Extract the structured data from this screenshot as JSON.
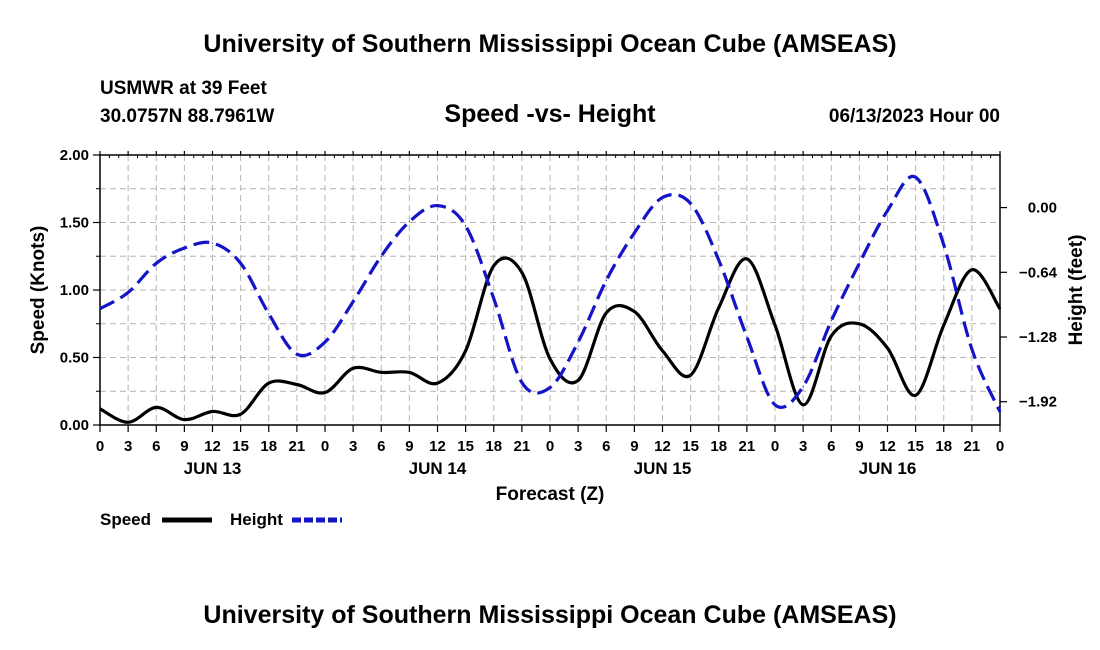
{
  "header": {
    "title": "University of Southern Mississippi Ocean Cube (AMSEAS)",
    "station": "USMWR at 39 Feet",
    "coords": "30.0757N  88.7961W",
    "plot_title": "Speed -vs- Height",
    "datetime": "06/13/2023 Hour 00"
  },
  "footer": {
    "title": "University of Southern Mississippi Ocean Cube (AMSEAS)"
  },
  "legend": {
    "speed_label": "Speed",
    "height_label": "Height"
  },
  "chart_data": {
    "type": "line",
    "title": "Speed -vs- Height",
    "xlabel": "Forecast (Z)",
    "ylabel": "Speed (Knots)",
    "y2label": "Height (feet)",
    "xlim": [
      0,
      96
    ],
    "ylim": [
      0,
      2.0
    ],
    "y2lim": [
      -2.15,
      0.52
    ],
    "grid": true,
    "legend_position": "bottom-left",
    "x_ticks": [
      0,
      3,
      6,
      9,
      12,
      15,
      18,
      21,
      24,
      27,
      30,
      33,
      36,
      39,
      42,
      45,
      48,
      51,
      54,
      57,
      60,
      63,
      66,
      69,
      72,
      75,
      78,
      81,
      84,
      87,
      90,
      93,
      96
    ],
    "x_tick_labels": [
      "0",
      "3",
      "6",
      "9",
      "12",
      "15",
      "18",
      "21",
      "0",
      "3",
      "6",
      "9",
      "12",
      "15",
      "18",
      "21",
      "0",
      "3",
      "6",
      "9",
      "12",
      "15",
      "18",
      "21",
      "0",
      "3",
      "6",
      "9",
      "12",
      "15",
      "18",
      "21",
      "0"
    ],
    "date_labels": [
      {
        "x": 12,
        "label": "JUN 13"
      },
      {
        "x": 36,
        "label": "JUN 14"
      },
      {
        "x": 60,
        "label": "JUN 15"
      },
      {
        "x": 84,
        "label": "JUN 16"
      }
    ],
    "y_ticks": [
      0.0,
      0.5,
      1.0,
      1.5,
      2.0
    ],
    "y_tick_labels": [
      "0.00",
      "0.50",
      "1.00",
      "1.50",
      "2.00"
    ],
    "y2_ticks": [
      0.0,
      -0.64,
      -1.28,
      -1.92
    ],
    "y2_tick_labels": [
      "0.00",
      "−0.64",
      "−1.28",
      "−1.92"
    ],
    "series": [
      {
        "name": "Speed",
        "axis": "left",
        "color": "#000000",
        "dash": "solid",
        "x": [
          0,
          3,
          6,
          9,
          12,
          15,
          18,
          21,
          24,
          27,
          30,
          33,
          36,
          39,
          42,
          45,
          48,
          51,
          54,
          57,
          60,
          63,
          66,
          69,
          72,
          75,
          78,
          81,
          84,
          87,
          90,
          93,
          96
        ],
        "values": [
          0.12,
          0.02,
          0.13,
          0.04,
          0.1,
          0.08,
          0.31,
          0.3,
          0.24,
          0.42,
          0.39,
          0.39,
          0.31,
          0.55,
          1.18,
          1.13,
          0.49,
          0.33,
          0.83,
          0.84,
          0.55,
          0.37,
          0.87,
          1.23,
          0.74,
          0.15,
          0.66,
          0.75,
          0.57,
          0.22,
          0.74,
          1.15,
          0.86
        ]
      },
      {
        "name": "Height",
        "axis": "right",
        "color": "#1414c8",
        "dash": "dashed",
        "x": [
          0,
          3,
          6,
          9,
          12,
          15,
          18,
          21,
          24,
          27,
          30,
          33,
          36,
          39,
          42,
          45,
          48,
          51,
          54,
          57,
          60,
          63,
          66,
          69,
          72,
          75,
          78,
          81,
          84,
          87,
          90,
          93,
          96
        ],
        "values": [
          -1.0,
          -0.84,
          -0.55,
          -0.4,
          -0.35,
          -0.55,
          -1.05,
          -1.45,
          -1.33,
          -0.93,
          -0.48,
          -0.14,
          0.02,
          -0.18,
          -0.9,
          -1.73,
          -1.78,
          -1.33,
          -0.72,
          -0.25,
          0.1,
          0.04,
          -0.52,
          -1.28,
          -1.95,
          -1.77,
          -1.12,
          -0.55,
          -0.03,
          0.3,
          -0.37,
          -1.4,
          -2.02
        ]
      }
    ]
  }
}
